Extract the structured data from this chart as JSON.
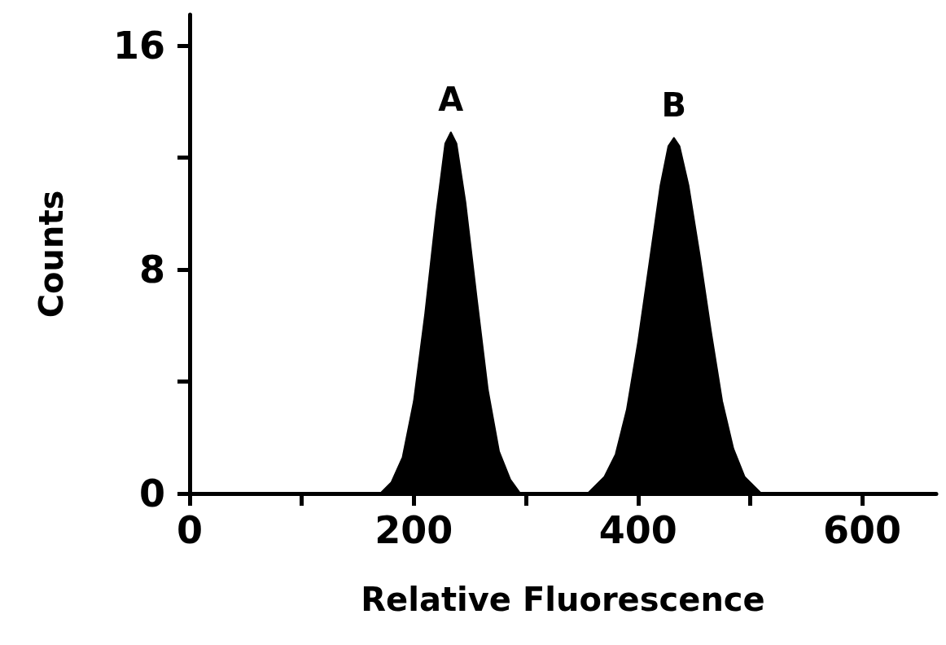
{
  "chart_data": {
    "type": "area",
    "xlabel": "Relative Fluorescence",
    "ylabel": "Counts",
    "xlim": [
      0,
      666
    ],
    "ylim": [
      0,
      17.1
    ],
    "xticks": [
      0,
      {
        "value": 100,
        "label": null
      },
      200,
      {
        "value": 300,
        "label": null
      },
      400,
      {
        "value": 500,
        "label": null
      },
      600
    ],
    "yticks": [
      0,
      {
        "value": 4,
        "label": null
      },
      8,
      {
        "value": 12,
        "label": null
      },
      16
    ],
    "marker": "none",
    "grid": false,
    "series": [
      {
        "color": "#000000",
        "x": [
          0,
          170,
          180,
          190,
          200,
          210,
          220,
          228,
          233,
          238,
          246,
          256,
          266,
          276,
          286,
          295,
          355,
          370,
          380,
          390,
          400,
          410,
          420,
          427,
          432,
          437,
          445,
          455,
          465,
          475,
          485,
          495,
          510,
          666
        ],
        "values": [
          0,
          0,
          0.4,
          1.3,
          3.3,
          6.4,
          10.0,
          12.5,
          12.9,
          12.5,
          10.4,
          7.0,
          3.7,
          1.5,
          0.5,
          0,
          0,
          0.6,
          1.4,
          3.0,
          5.4,
          8.2,
          11.0,
          12.4,
          12.7,
          12.4,
          11.0,
          8.5,
          5.8,
          3.3,
          1.6,
          0.6,
          0,
          0
        ]
      }
    ],
    "annotations": [
      {
        "text": "A",
        "x": 233,
        "y": 12.9
      },
      {
        "text": "B",
        "x": 432,
        "y": 12.7
      }
    ]
  }
}
